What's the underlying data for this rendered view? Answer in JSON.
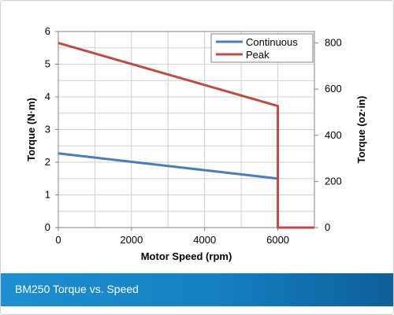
{
  "footer": {
    "title": "BM250 Torque vs. Speed"
  },
  "chart_data": {
    "type": "line",
    "title": "",
    "xlabel": "Motor Speed (rpm)",
    "ylabel": "Torque (N·m)",
    "y2label": "Torque (oz·in)",
    "xlim": [
      0,
      7000
    ],
    "ylim": [
      0,
      6
    ],
    "y2lim": [
      0,
      849.7
    ],
    "x_ticks": [
      0,
      2000,
      4000,
      6000
    ],
    "y_ticks": [
      0,
      1,
      2,
      3,
      4,
      5,
      6
    ],
    "y2_ticks": [
      0,
      200,
      400,
      600,
      800
    ],
    "grid": true,
    "legend_position": "top-right",
    "series": [
      {
        "name": "Continuous",
        "color": "#4a7ebb",
        "x": [
          0,
          6000
        ],
        "y": [
          2.27,
          1.5
        ]
      },
      {
        "name": "Peak",
        "color": "#be4b48",
        "x": [
          0,
          6000,
          6000,
          7000
        ],
        "y": [
          5.65,
          3.72,
          0,
          0
        ]
      }
    ]
  }
}
